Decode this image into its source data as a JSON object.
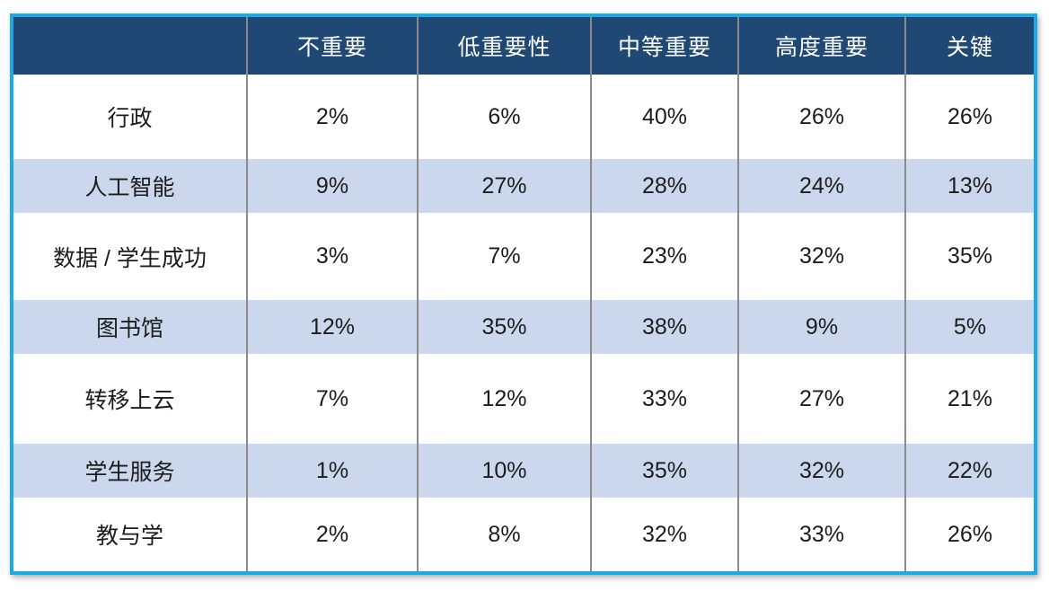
{
  "table": {
    "description_colors": {
      "outer_border": "#1ca9e8",
      "header_background": "#1f4874",
      "header_text": "#ffffff",
      "stripe_row_background": "#cbd7ec",
      "body_text": "#1c1c1c",
      "column_separator": "#8a8a8a"
    },
    "columns": [
      "",
      "不重要",
      "低重要性",
      "中等重要",
      "高度重要",
      "关键"
    ],
    "rows": [
      {
        "label": "行政",
        "values": [
          "2%",
          "6%",
          "40%",
          "26%",
          "26%"
        ]
      },
      {
        "label": "人工智能",
        "values": [
          "9%",
          "27%",
          "28%",
          "24%",
          "13%"
        ]
      },
      {
        "label": "数据 / 学生成功",
        "values": [
          "3%",
          "7%",
          "23%",
          "32%",
          "35%"
        ]
      },
      {
        "label": "图书馆",
        "values": [
          "12%",
          "35%",
          "38%",
          "9%",
          "5%"
        ]
      },
      {
        "label": "转移上云",
        "values": [
          "7%",
          "12%",
          "33%",
          "27%",
          "21%"
        ]
      },
      {
        "label": "学生服务",
        "values": [
          "1%",
          "10%",
          "35%",
          "32%",
          "22%"
        ]
      },
      {
        "label": "教与学",
        "values": [
          "2%",
          "8%",
          "32%",
          "33%",
          "26%"
        ]
      }
    ]
  },
  "chart_data": {
    "type": "table",
    "title": "",
    "columns": [
      "",
      "不重要",
      "低重要性",
      "中等重要",
      "高度重要",
      "关键"
    ],
    "row_labels": [
      "行政",
      "人工智能",
      "数据 / 学生成功",
      "图书馆",
      "转移上云",
      "学生服务",
      "教与学"
    ],
    "series": [
      {
        "name": "不重要",
        "values": [
          2,
          9,
          3,
          12,
          7,
          1,
          2
        ]
      },
      {
        "name": "低重要性",
        "values": [
          6,
          27,
          7,
          35,
          12,
          10,
          8
        ]
      },
      {
        "name": "中等重要",
        "values": [
          40,
          28,
          23,
          38,
          33,
          35,
          32
        ]
      },
      {
        "name": "高度重要",
        "values": [
          26,
          24,
          32,
          9,
          27,
          32,
          33
        ]
      },
      {
        "name": "关键",
        "values": [
          26,
          13,
          35,
          5,
          21,
          22,
          26
        ]
      }
    ],
    "unit": "%"
  }
}
